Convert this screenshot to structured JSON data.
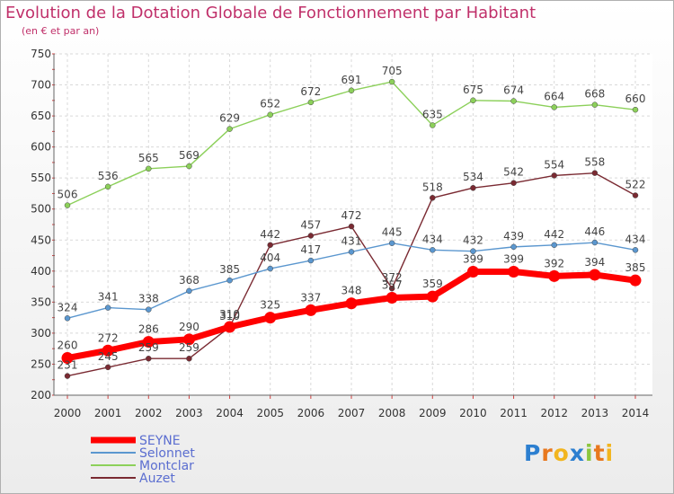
{
  "title": "Evolution de la Dotation Globale de Fonctionnement par Habitant",
  "subtitle": "(en € et par an)",
  "logo": "Proxiti",
  "chart_data": {
    "type": "line",
    "x": [
      "2000",
      "2001",
      "2002",
      "2003",
      "2004",
      "2005",
      "2006",
      "2007",
      "2008",
      "2009",
      "2010",
      "2011",
      "2012",
      "2013",
      "2014"
    ],
    "ylim": [
      200,
      750
    ],
    "yticks": [
      200,
      250,
      300,
      350,
      400,
      450,
      500,
      550,
      600,
      650,
      700,
      750
    ],
    "grid": true,
    "legend_position": "bottom-left",
    "series": [
      {
        "name": "SEYNE",
        "color": "#ff0000",
        "values": [
          260,
          272,
          286,
          290,
          310,
          325,
          337,
          348,
          357,
          359,
          399,
          399,
          392,
          394,
          385
        ]
      },
      {
        "name": "Selonnet",
        "color": "#5b97cf",
        "values": [
          324,
          341,
          338,
          368,
          385,
          404,
          417,
          431,
          445,
          434,
          432,
          439,
          442,
          446,
          434
        ]
      },
      {
        "name": "Montclar",
        "color": "#8cd05a",
        "values": [
          506,
          536,
          565,
          569,
          629,
          652,
          672,
          691,
          705,
          635,
          675,
          674,
          664,
          668,
          660
        ]
      },
      {
        "name": "Auzet",
        "color": "#7a2a32",
        "values": [
          231,
          245,
          259,
          259,
          310,
          442,
          457,
          472,
          372,
          518,
          534,
          542,
          554,
          558,
          522
        ]
      }
    ]
  }
}
